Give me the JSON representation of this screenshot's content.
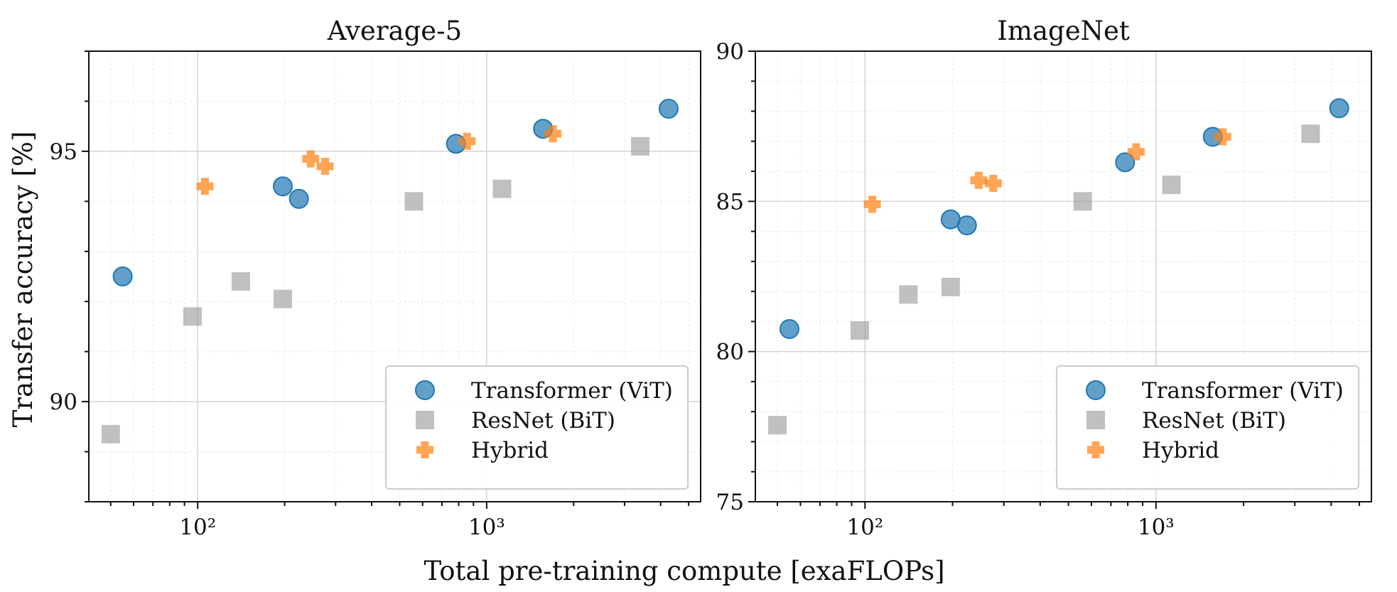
{
  "chart_data": [
    {
      "type": "scatter",
      "title": "Average-5",
      "xlabel": "Total pre-training compute [exaFLOPs]",
      "ylabel": "Transfer accuracy [%]",
      "xscale": "log",
      "xlim": [
        42,
        5500
      ],
      "ylim": [
        88,
        97
      ],
      "x_tick_labels": [
        "10²",
        "10³"
      ],
      "y_tick_labels": [
        "90",
        "95"
      ],
      "grid": true,
      "legend": "lower right",
      "series": [
        {
          "name": "Transformer (ViT)",
          "marker": "circle",
          "color": "#1f77b4",
          "x": [
            55,
            197,
            224,
            783,
            1567,
            4262
          ],
          "y": [
            92.5,
            94.3,
            94.05,
            95.15,
            95.45,
            95.85
          ]
        },
        {
          "name": "ResNet (BiT)",
          "marker": "square",
          "color": "#9e9e9e",
          "x": [
            50,
            96,
            141,
            197,
            560,
            1130,
            3400
          ],
          "y": [
            89.35,
            91.7,
            92.4,
            92.05,
            94.0,
            94.25,
            95.1
          ]
        },
        {
          "name": "Hybrid",
          "marker": "plus",
          "color": "#ff7f0e",
          "x": [
            106,
            246,
            276,
            855,
            1696
          ],
          "y": [
            94.3,
            94.85,
            94.7,
            95.2,
            95.35
          ]
        }
      ]
    },
    {
      "type": "scatter",
      "title": "ImageNet",
      "xlabel": "Total pre-training compute [exaFLOPs]",
      "ylabel": "",
      "xscale": "log",
      "xlim": [
        42,
        5500
      ],
      "ylim": [
        75,
        90
      ],
      "x_tick_labels": [
        "10²",
        "10³"
      ],
      "y_tick_labels": [
        "75",
        "80",
        "85",
        "90"
      ],
      "grid": true,
      "legend": "lower right",
      "series": [
        {
          "name": "Transformer (ViT)",
          "marker": "circle",
          "color": "#1f77b4",
          "x": [
            55,
            197,
            224,
            783,
            1567,
            4262
          ],
          "y": [
            80.75,
            84.4,
            84.2,
            86.3,
            87.15,
            88.1
          ]
        },
        {
          "name": "ResNet (BiT)",
          "marker": "square",
          "color": "#9e9e9e",
          "x": [
            50,
            96,
            141,
            197,
            560,
            1130,
            3400
          ],
          "y": [
            77.55,
            80.7,
            81.9,
            82.15,
            85.0,
            85.55,
            87.25
          ]
        },
        {
          "name": "Hybrid",
          "marker": "plus",
          "color": "#ff7f0e",
          "x": [
            106,
            246,
            276,
            855,
            1696
          ],
          "y": [
            84.9,
            85.7,
            85.6,
            86.65,
            87.15
          ]
        }
      ]
    }
  ],
  "shared": {
    "xlabel": "Total pre-training compute [exaFLOPs]",
    "ylabel": "Transfer accuracy [%]"
  }
}
